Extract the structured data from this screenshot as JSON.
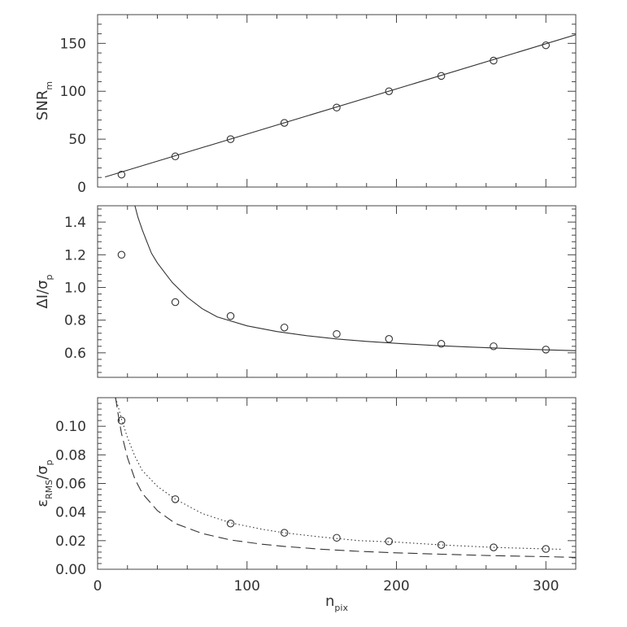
{
  "chart_data": [
    {
      "type": "scatter",
      "xlim": [
        0,
        320
      ],
      "ylim": [
        0,
        180
      ],
      "yticks": [
        0,
        50,
        100,
        150
      ],
      "ytick_labels": [
        "0",
        "50",
        "100",
        "150"
      ],
      "ylabel": {
        "main": "SNR",
        "sub": "m"
      },
      "series": [
        {
          "style": "points",
          "x": [
            16,
            52,
            89,
            125,
            160,
            195,
            230,
            265,
            300
          ],
          "y": [
            13,
            32,
            50,
            67,
            83,
            100,
            116,
            132,
            148
          ]
        },
        {
          "style": "solid",
          "x": [
            5,
            320
          ],
          "y": [
            10.5,
            159
          ]
        }
      ]
    },
    {
      "type": "scatter",
      "xlim": [
        0,
        320
      ],
      "ylim": [
        0.45,
        1.5
      ],
      "yticks": [
        0.6,
        0.8,
        1.0,
        1.2,
        1.4
      ],
      "ytick_labels": [
        "0.6",
        "0.8",
        "1.0",
        "1.2",
        "1.4"
      ],
      "ylabel": {
        "main": "ΔI/σ",
        "sub": "p"
      },
      "series": [
        {
          "style": "points",
          "x": [
            16,
            52,
            89,
            125,
            160,
            195,
            230,
            265,
            300
          ],
          "y": [
            1.2,
            0.91,
            0.825,
            0.755,
            0.715,
            0.685,
            0.655,
            0.64,
            0.62
          ]
        },
        {
          "style": "solid",
          "x": [
            25,
            27,
            30,
            33,
            36,
            40,
            45,
            50,
            60,
            70,
            80,
            100,
            120,
            140,
            160,
            180,
            200,
            225,
            250,
            275,
            300,
            320
          ],
          "y": [
            1.5,
            1.43,
            1.35,
            1.28,
            1.21,
            1.15,
            1.09,
            1.03,
            0.94,
            0.87,
            0.82,
            0.765,
            0.73,
            0.705,
            0.685,
            0.67,
            0.658,
            0.645,
            0.635,
            0.626,
            0.618,
            0.613
          ]
        }
      ]
    },
    {
      "type": "scatter",
      "xlim": [
        0,
        320
      ],
      "ylim": [
        0,
        0.12
      ],
      "xticks": [
        0,
        100,
        200,
        300
      ],
      "xtick_labels": [
        "0",
        "100",
        "200",
        "300"
      ],
      "xlabel": {
        "main": "n",
        "sub": "pix"
      },
      "yticks": [
        0,
        0.02,
        0.04,
        0.06,
        0.08,
        0.1
      ],
      "ytick_labels": [
        "0.00",
        "0.02",
        "0.04",
        "0.06",
        "0.08",
        "0.10"
      ],
      "ylabel": {
        "main": "ε",
        "sub1": "RMS",
        "mid": "/σ",
        "sub2": "p"
      },
      "series": [
        {
          "style": "points",
          "x": [
            16,
            52,
            89,
            125,
            160,
            195,
            230,
            265,
            300
          ],
          "y": [
            0.104,
            0.049,
            0.032,
            0.0255,
            0.022,
            0.0195,
            0.017,
            0.0153,
            0.0142
          ]
        },
        {
          "style": "dotted",
          "x": [
            12,
            14,
            16,
            20,
            25,
            30,
            40,
            52,
            70,
            89,
            110,
            125,
            150,
            175,
            200,
            230,
            265,
            300,
            310
          ],
          "y": [
            0.12,
            0.113,
            0.105,
            0.092,
            0.079,
            0.069,
            0.058,
            0.049,
            0.039,
            0.0325,
            0.028,
            0.0255,
            0.0225,
            0.02,
            0.019,
            0.017,
            0.0153,
            0.0142,
            0.014
          ]
        },
        {
          "style": "dashed",
          "x": [
            12,
            14,
            16,
            20,
            25,
            30,
            40,
            52,
            70,
            89,
            110,
            125,
            150,
            175,
            200,
            230,
            265,
            300,
            320
          ],
          "y": [
            0.12,
            0.107,
            0.095,
            0.078,
            0.063,
            0.053,
            0.041,
            0.032,
            0.025,
            0.0205,
            0.0175,
            0.016,
            0.014,
            0.0125,
            0.0115,
            0.0105,
            0.0095,
            0.0088,
            0.0083
          ]
        }
      ]
    }
  ]
}
